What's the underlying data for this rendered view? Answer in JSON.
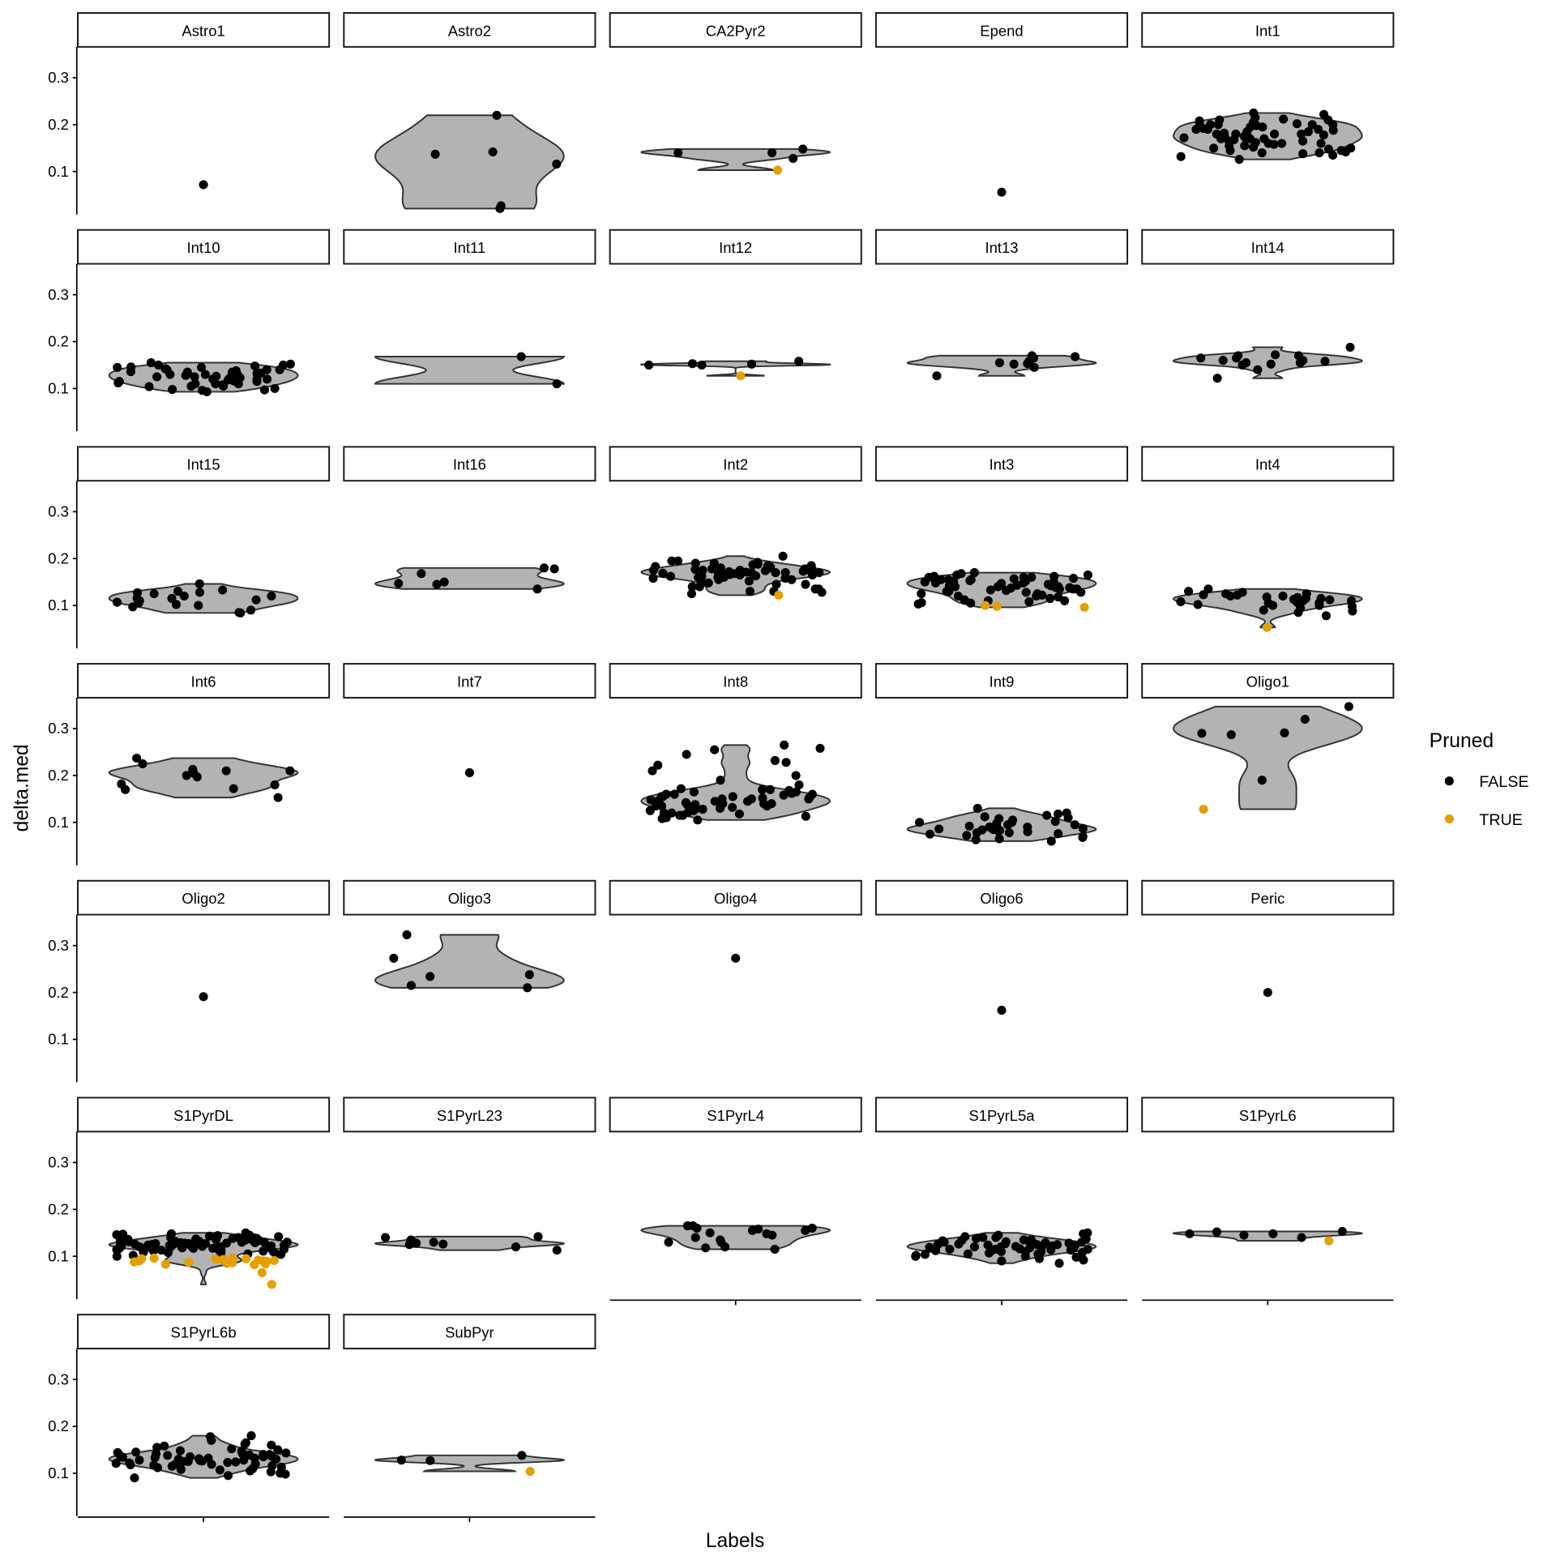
{
  "chart_data": {
    "type": "violin",
    "xlabel": "Labels",
    "ylabel": "delta.med",
    "ylim": [
      0.008,
      0.366
    ],
    "yticks": [
      "0.1",
      "0.2",
      "0.3"
    ],
    "ytick_values": [
      0.1,
      0.2,
      0.3
    ],
    "violin_fill": "#b3b3b3",
    "legend": {
      "title": "Pruned",
      "placement": "right",
      "entries": [
        {
          "label": "FALSE",
          "color": "#000000"
        },
        {
          "label": "TRUE",
          "color": "#E69F00"
        }
      ]
    },
    "panels": [
      {
        "label": "Astro1",
        "false": [
          0.072
        ],
        "true": []
      },
      {
        "label": "Astro2",
        "false": [
          0.22,
          0.137,
          0.142,
          0.116,
          0.027,
          0.021
        ],
        "true": []
      },
      {
        "label": "CA2Pyr2",
        "false": [
          0.14,
          0.148,
          0.14,
          0.128
        ],
        "true": [
          0.103
        ]
      },
      {
        "label": "Epend",
        "false": [
          0.056
        ],
        "true": []
      },
      {
        "label": "Int1",
        "false": [
          0.126,
          0.14,
          0.15,
          0.16,
          0.17,
          0.18,
          0.19,
          0.2,
          0.21,
          0.205,
          0.195,
          0.185,
          0.175,
          0.165,
          0.155,
          0.145,
          0.135,
          0.225,
          0.215,
          0.222,
          0.2,
          0.19,
          0.18,
          0.17,
          0.16,
          0.15,
          0.14,
          0.2,
          0.21,
          0.198,
          0.188,
          0.178,
          0.168,
          0.158,
          0.148,
          0.138,
          0.208,
          0.212,
          0.19,
          0.18,
          0.17,
          0.165,
          0.175,
          0.185,
          0.195,
          0.152,
          0.142,
          0.162,
          0.172,
          0.182,
          0.192,
          0.202,
          0.132,
          0.145,
          0.155,
          0.205,
          0.2,
          0.16,
          0.17,
          0.18
        ],
        "true": []
      },
      {
        "label": "Int10",
        "false": [
          0.097,
          0.105,
          0.11,
          0.115,
          0.12,
          0.125,
          0.13,
          0.135,
          0.14,
          0.145,
          0.15,
          0.155,
          0.093,
          0.1,
          0.108,
          0.112,
          0.118,
          0.122,
          0.128,
          0.132,
          0.138,
          0.142,
          0.148,
          0.152,
          0.096,
          0.104,
          0.11,
          0.116,
          0.12,
          0.126,
          0.13,
          0.136,
          0.14,
          0.146,
          0.15,
          0.11,
          0.12,
          0.13,
          0.14,
          0.125,
          0.115,
          0.135,
          0.105,
          0.145,
          0.098,
          0.123,
          0.133
        ],
        "true": []
      },
      {
        "label": "Int11",
        "false": [
          0.168,
          0.11
        ],
        "true": []
      },
      {
        "label": "Int12",
        "false": [
          0.152,
          0.158,
          0.15,
          0.15,
          0.153
        ],
        "true": [
          0.127
        ]
      },
      {
        "label": "Int13",
        "false": [
          0.153,
          0.145,
          0.17,
          0.155,
          0.158,
          0.168,
          0.165,
          0.127,
          0.152
        ],
        "true": []
      },
      {
        "label": "Int14",
        "false": [
          0.122,
          0.17,
          0.14,
          0.165,
          0.155,
          0.15,
          0.155,
          0.16,
          0.17,
          0.165,
          0.172,
          0.188,
          0.16,
          0.152,
          0.158
        ],
        "true": []
      },
      {
        "label": "Int15",
        "false": [
          0.112,
          0.115,
          0.146,
          0.128,
          0.11,
          0.12,
          0.102,
          0.107,
          0.133,
          0.12,
          0.097,
          0.105,
          0.115,
          0.127,
          0.09,
          0.084,
          0.085,
          0.13,
          0.125,
          0.1
        ],
        "true": []
      },
      {
        "label": "Int16",
        "false": [
          0.18,
          0.145,
          0.147,
          0.135,
          0.15,
          0.178,
          0.168
        ],
        "true": []
      },
      {
        "label": "Int2",
        "false": [
          0.125,
          0.13,
          0.135,
          0.14,
          0.145,
          0.15,
          0.155,
          0.16,
          0.165,
          0.17,
          0.175,
          0.18,
          0.185,
          0.19,
          0.195,
          0.205,
          0.158,
          0.162,
          0.168,
          0.172,
          0.178,
          0.182,
          0.188,
          0.152,
          0.148,
          0.16,
          0.165,
          0.17,
          0.175,
          0.18,
          0.185,
          0.163,
          0.167,
          0.173,
          0.177,
          0.183,
          0.155,
          0.16,
          0.165,
          0.17,
          0.175,
          0.18,
          0.19,
          0.195,
          0.145,
          0.14,
          0.135,
          0.13,
          0.128,
          0.17,
          0.166,
          0.174,
          0.178,
          0.162,
          0.158,
          0.187,
          0.192,
          0.171,
          0.169,
          0.176
        ],
        "true": [
          0.122
        ]
      },
      {
        "label": "Int3",
        "false": [
          0.103,
          0.108,
          0.112,
          0.118,
          0.122,
          0.128,
          0.132,
          0.138,
          0.142,
          0.148,
          0.152,
          0.158,
          0.162,
          0.168,
          0.105,
          0.11,
          0.115,
          0.12,
          0.125,
          0.13,
          0.135,
          0.14,
          0.145,
          0.15,
          0.155,
          0.16,
          0.165,
          0.17,
          0.14,
          0.145,
          0.15,
          0.155,
          0.16,
          0.135,
          0.13,
          0.125,
          0.12,
          0.142,
          0.147,
          0.152,
          0.157,
          0.162,
          0.138,
          0.133,
          0.128,
          0.148,
          0.153,
          0.158,
          0.143,
          0.137,
          0.115,
          0.11,
          0.106,
          0.165,
          0.15,
          0.145,
          0.14,
          0.155,
          0.16,
          0.135
        ],
        "true": [
          0.1,
          0.098,
          0.096
        ]
      },
      {
        "label": "Int4",
        "false": [
          0.085,
          0.09,
          0.095,
          0.1,
          0.105,
          0.11,
          0.115,
          0.12,
          0.125,
          0.13,
          0.135,
          0.112,
          0.118,
          0.122,
          0.108,
          0.102,
          0.098,
          0.115,
          0.12,
          0.11,
          0.105,
          0.125,
          0.078,
          0.088,
          0.113,
          0.117,
          0.123,
          0.1,
          0.128,
          0.107
        ],
        "true": [
          0.053
        ]
      },
      {
        "label": "Int6",
        "false": [
          0.18,
          0.197,
          0.182,
          0.172,
          0.237,
          0.225,
          0.21,
          0.2,
          0.205,
          0.17,
          0.153,
          0.213,
          0.21
        ],
        "true": []
      },
      {
        "label": "Int7",
        "false": [
          0.206
        ],
        "true": []
      },
      {
        "label": "Int8",
        "false": [
          0.258,
          0.228,
          0.265,
          0.255,
          0.245,
          0.232,
          0.222,
          0.21,
          0.2,
          0.19,
          0.18,
          0.17,
          0.165,
          0.16,
          0.155,
          0.15,
          0.145,
          0.14,
          0.135,
          0.13,
          0.125,
          0.12,
          0.115,
          0.11,
          0.105,
          0.165,
          0.16,
          0.155,
          0.15,
          0.145,
          0.14,
          0.135,
          0.13,
          0.125,
          0.12,
          0.115,
          0.17,
          0.162,
          0.152,
          0.142,
          0.132,
          0.122,
          0.158,
          0.148,
          0.138,
          0.128,
          0.145,
          0.15,
          0.14,
          0.155,
          0.135,
          0.113,
          0.108,
          0.118,
          0.16,
          0.168,
          0.172,
          0.143,
          0.137,
          0.153
        ],
        "true": []
      },
      {
        "label": "Int9",
        "false": [
          0.06,
          0.063,
          0.068,
          0.072,
          0.075,
          0.078,
          0.08,
          0.083,
          0.085,
          0.088,
          0.09,
          0.095,
          0.1,
          0.105,
          0.11,
          0.115,
          0.12,
          0.13,
          0.082,
          0.086,
          0.078,
          0.092,
          0.098,
          0.102,
          0.108,
          0.112,
          0.118,
          0.07,
          0.065,
          0.084,
          0.09,
          0.076,
          0.1,
          0.095,
          0.087
        ],
        "true": []
      },
      {
        "label": "Oligo1",
        "false": [
          0.347,
          0.29,
          0.291,
          0.32,
          0.287,
          0.19
        ],
        "true": [
          0.128
        ]
      },
      {
        "label": "Oligo2",
        "false": [
          0.191
        ],
        "true": []
      },
      {
        "label": "Oligo3",
        "false": [
          0.238,
          0.234,
          0.273,
          0.323,
          0.21,
          0.215
        ],
        "true": []
      },
      {
        "label": "Oligo4",
        "false": [
          0.273
        ],
        "true": []
      },
      {
        "label": "Oligo6",
        "false": [
          0.162
        ],
        "true": []
      },
      {
        "label": "Peric",
        "false": [
          0.2
        ],
        "true": []
      },
      {
        "label": "S1PyrDL",
        "false": [
          0.1,
          0.105,
          0.108,
          0.11,
          0.112,
          0.115,
          0.118,
          0.12,
          0.122,
          0.125,
          0.128,
          0.13,
          0.132,
          0.135,
          0.138,
          0.14,
          0.142,
          0.145,
          0.148,
          0.15,
          0.102,
          0.107,
          0.113,
          0.117,
          0.121,
          0.124,
          0.127,
          0.131,
          0.134,
          0.137,
          0.141,
          0.144,
          0.147,
          0.104,
          0.109,
          0.114,
          0.119,
          0.123,
          0.126,
          0.129,
          0.133,
          0.136,
          0.139,
          0.143,
          0.146,
          0.111,
          0.116,
          0.12,
          0.124,
          0.128,
          0.132,
          0.136,
          0.12,
          0.125,
          0.13,
          0.115,
          0.122,
          0.127,
          0.118,
          0.131,
          0.135,
          0.126,
          0.119,
          0.123,
          0.129,
          0.106,
          0.14,
          0.113,
          0.124,
          0.128,
          0.121,
          0.117,
          0.133,
          0.125,
          0.12,
          0.13,
          0.127,
          0.122,
          0.118,
          0.138
        ],
        "true": [
          0.065,
          0.085,
          0.09,
          0.095,
          0.092,
          0.088,
          0.086,
          0.082,
          0.09,
          0.094,
          0.087,
          0.04,
          0.093,
          0.096,
          0.089,
          0.083,
          0.091,
          0.097,
          0.084,
          0.095
        ]
      },
      {
        "label": "S1PyrL23",
        "false": [
          0.14,
          0.142,
          0.113,
          0.12,
          0.13,
          0.135,
          0.125,
          0.128,
          0.126
        ],
        "true": []
      },
      {
        "label": "S1PyrL4",
        "false": [
          0.155,
          0.15,
          0.145,
          0.165,
          0.16,
          0.158,
          0.155,
          0.13,
          0.12,
          0.135,
          0.14,
          0.165,
          0.16,
          0.115,
          0.118,
          0.13,
          0.148
        ],
        "true": []
      },
      {
        "label": "S1PyrL5a",
        "false": [
          0.085,
          0.09,
          0.095,
          0.1,
          0.105,
          0.11,
          0.115,
          0.12,
          0.125,
          0.13,
          0.135,
          0.14,
          0.145,
          0.15,
          0.092,
          0.098,
          0.102,
          0.108,
          0.112,
          0.118,
          0.122,
          0.128,
          0.132,
          0.138,
          0.142,
          0.148,
          0.1,
          0.105,
          0.11,
          0.115,
          0.12,
          0.125,
          0.13,
          0.135,
          0.14,
          0.107,
          0.113,
          0.117,
          0.123,
          0.127,
          0.133,
          0.137,
          0.11,
          0.115,
          0.12,
          0.125,
          0.13,
          0.118,
          0.122,
          0.126,
          0.114,
          0.129,
          0.104,
          0.134,
          0.121,
          0.116,
          0.124,
          0.119,
          0.131,
          0.111
        ],
        "true": []
      },
      {
        "label": "S1PyrL6",
        "false": [
          0.145,
          0.152,
          0.148,
          0.153,
          0.148,
          0.14
        ],
        "true": [
          0.133
        ]
      },
      {
        "label": "S1PyrL6b",
        "false": [
          0.09,
          0.095,
          0.1,
          0.105,
          0.11,
          0.115,
          0.12,
          0.125,
          0.13,
          0.135,
          0.14,
          0.145,
          0.15,
          0.155,
          0.16,
          0.165,
          0.17,
          0.18,
          0.178,
          0.098,
          0.103,
          0.108,
          0.112,
          0.118,
          0.122,
          0.128,
          0.132,
          0.138,
          0.142,
          0.148,
          0.152,
          0.158,
          0.162,
          0.107,
          0.113,
          0.117,
          0.123,
          0.127,
          0.133,
          0.137,
          0.143,
          0.147,
          0.12,
          0.125,
          0.13,
          0.135,
          0.14,
          0.128,
          0.132,
          0.136,
          0.124,
          0.139,
          0.116,
          0.144,
          0.121,
          0.131,
          0.126,
          0.134,
          0.119,
          0.141
        ],
        "true": []
      },
      {
        "label": "SubPyr",
        "false": [
          0.128,
          0.138,
          0.127
        ],
        "true": [
          0.104
        ]
      }
    ]
  }
}
